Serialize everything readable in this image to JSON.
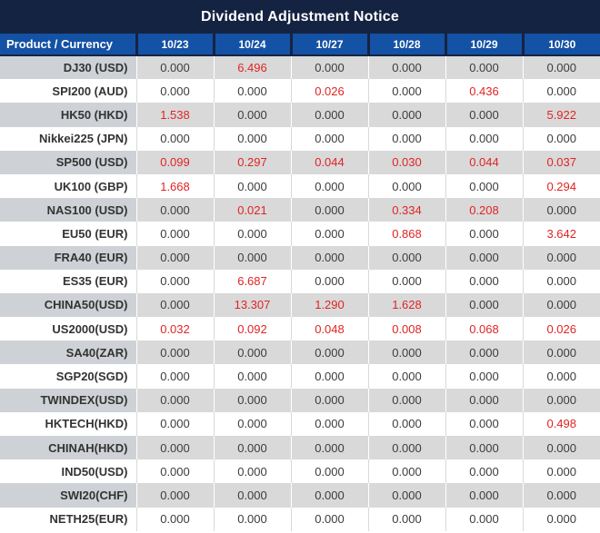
{
  "title": "Dividend Adjustment Notice",
  "colors": {
    "title_bar_bg": "#152342",
    "header_bg": "#1452a5",
    "header_text": "#ffffff",
    "row_alt_bg": "#d9d9d9",
    "label_alt_bg": "#ced2d6",
    "label_text": "#333333",
    "value_text": "#3c3c3c",
    "highlight_red": "#e02424"
  },
  "chart_data": {
    "type": "table",
    "title": "Dividend Adjustment Notice",
    "columns": [
      "Product / Currency",
      "10/23",
      "10/24",
      "10/27",
      "10/28",
      "10/29",
      "10/30"
    ],
    "rows": [
      {
        "label": "DJ30 (USD)",
        "values": [
          "0.000",
          "6.496",
          "0.000",
          "0.000",
          "0.000",
          "0.000"
        ],
        "red": [
          0,
          1,
          0,
          0,
          0,
          0
        ]
      },
      {
        "label": "SPI200 (AUD)",
        "values": [
          "0.000",
          "0.000",
          "0.026",
          "0.000",
          "0.436",
          "0.000"
        ],
        "red": [
          0,
          0,
          1,
          0,
          1,
          0
        ]
      },
      {
        "label": "HK50 (HKD)",
        "values": [
          "1.538",
          "0.000",
          "0.000",
          "0.000",
          "0.000",
          "5.922"
        ],
        "red": [
          1,
          0,
          0,
          0,
          0,
          1
        ]
      },
      {
        "label": "Nikkei225 (JPN)",
        "values": [
          "0.000",
          "0.000",
          "0.000",
          "0.000",
          "0.000",
          "0.000"
        ],
        "red": [
          0,
          0,
          0,
          0,
          0,
          0
        ]
      },
      {
        "label": "SP500 (USD)",
        "values": [
          "0.099",
          "0.297",
          "0.044",
          "0.030",
          "0.044",
          "0.037"
        ],
        "red": [
          1,
          1,
          1,
          1,
          1,
          1
        ]
      },
      {
        "label": "UK100 (GBP)",
        "values": [
          "1.668",
          "0.000",
          "0.000",
          "0.000",
          "0.000",
          "0.294"
        ],
        "red": [
          1,
          0,
          0,
          0,
          0,
          1
        ]
      },
      {
        "label": "NAS100 (USD)",
        "values": [
          "0.000",
          "0.021",
          "0.000",
          "0.334",
          "0.208",
          "0.000"
        ],
        "red": [
          0,
          1,
          0,
          1,
          1,
          0
        ]
      },
      {
        "label": "EU50 (EUR)",
        "values": [
          "0.000",
          "0.000",
          "0.000",
          "0.868",
          "0.000",
          "3.642"
        ],
        "red": [
          0,
          0,
          0,
          1,
          0,
          1
        ]
      },
      {
        "label": "FRA40 (EUR)",
        "values": [
          "0.000",
          "0.000",
          "0.000",
          "0.000",
          "0.000",
          "0.000"
        ],
        "red": [
          0,
          0,
          0,
          0,
          0,
          0
        ]
      },
      {
        "label": "ES35 (EUR)",
        "values": [
          "0.000",
          "6.687",
          "0.000",
          "0.000",
          "0.000",
          "0.000"
        ],
        "red": [
          0,
          1,
          0,
          0,
          0,
          0
        ]
      },
      {
        "label": "CHINA50(USD)",
        "values": [
          "0.000",
          "13.307",
          "1.290",
          "1.628",
          "0.000",
          "0.000"
        ],
        "red": [
          0,
          1,
          1,
          1,
          0,
          0
        ]
      },
      {
        "label": "US2000(USD)",
        "values": [
          "0.032",
          "0.092",
          "0.048",
          "0.008",
          "0.068",
          "0.026"
        ],
        "red": [
          1,
          1,
          1,
          1,
          1,
          1
        ]
      },
      {
        "label": "SA40(ZAR)",
        "values": [
          "0.000",
          "0.000",
          "0.000",
          "0.000",
          "0.000",
          "0.000"
        ],
        "red": [
          0,
          0,
          0,
          0,
          0,
          0
        ]
      },
      {
        "label": "SGP20(SGD)",
        "values": [
          "0.000",
          "0.000",
          "0.000",
          "0.000",
          "0.000",
          "0.000"
        ],
        "red": [
          0,
          0,
          0,
          0,
          0,
          0
        ]
      },
      {
        "label": "TWINDEX(USD)",
        "values": [
          "0.000",
          "0.000",
          "0.000",
          "0.000",
          "0.000",
          "0.000"
        ],
        "red": [
          0,
          0,
          0,
          0,
          0,
          0
        ]
      },
      {
        "label": "HKTECH(HKD)",
        "values": [
          "0.000",
          "0.000",
          "0.000",
          "0.000",
          "0.000",
          "0.498"
        ],
        "red": [
          0,
          0,
          0,
          0,
          0,
          1
        ]
      },
      {
        "label": "CHINAH(HKD)",
        "values": [
          "0.000",
          "0.000",
          "0.000",
          "0.000",
          "0.000",
          "0.000"
        ],
        "red": [
          0,
          0,
          0,
          0,
          0,
          0
        ]
      },
      {
        "label": "IND50(USD)",
        "values": [
          "0.000",
          "0.000",
          "0.000",
          "0.000",
          "0.000",
          "0.000"
        ],
        "red": [
          0,
          0,
          0,
          0,
          0,
          0
        ]
      },
      {
        "label": "SWI20(CHF)",
        "values": [
          "0.000",
          "0.000",
          "0.000",
          "0.000",
          "0.000",
          "0.000"
        ],
        "red": [
          0,
          0,
          0,
          0,
          0,
          0
        ]
      },
      {
        "label": "NETH25(EUR)",
        "values": [
          "0.000",
          "0.000",
          "0.000",
          "0.000",
          "0.000",
          "0.000"
        ],
        "red": [
          0,
          0,
          0,
          0,
          0,
          0
        ]
      }
    ]
  }
}
